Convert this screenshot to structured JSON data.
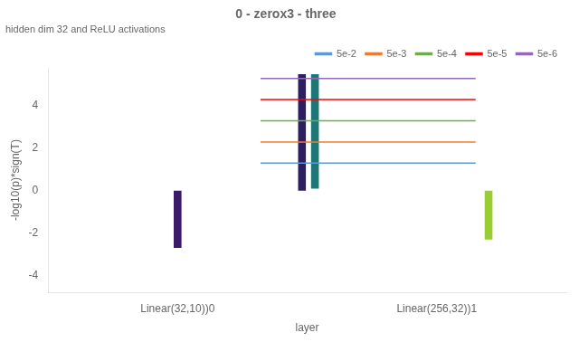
{
  "chart_data": {
    "type": "bar",
    "title": "0 - zerox3 - three",
    "subtitle": "hidden dim 32 and ReLU activations",
    "xlabel": "layer",
    "ylabel": "-log10(p)*sign(T)",
    "x": [
      0.0,
      0.48,
      0.53,
      1.2
    ],
    "values": [
      [
        -2.7,
        0.0
      ],
      [
        0.0,
        5.5
      ],
      [
        0.1,
        5.5
      ],
      [
        -2.3,
        0.0
      ]
    ],
    "colors": [
      "#3b1a6b",
      "#2d1f5e",
      "#1d7777",
      "#9acd32"
    ],
    "xlim": [
      -0.5,
      1.5
    ],
    "xticks": [
      {
        "value": 0,
        "label": "Linear(32,10))0"
      },
      {
        "value": 1,
        "label": "Linear(256,32))1"
      }
    ],
    "ylim": [
      -4.8,
      5.8
    ],
    "yticks": [
      -4,
      -2,
      0,
      2,
      4
    ],
    "grid": false,
    "legend": "upper right",
    "series": [
      {
        "name": "5e-2",
        "type": "line",
        "color": "#5b9bd5",
        "x": [
          0.32,
          1.15
        ],
        "values": [
          1.301,
          1.301
        ]
      },
      {
        "name": "5e-3",
        "type": "line",
        "color": "#ed7d31",
        "x": [
          0.32,
          1.15
        ],
        "values": [
          2.301,
          2.301
        ]
      },
      {
        "name": "5e-4",
        "type": "line",
        "color": "#70ad47",
        "x": [
          0.32,
          1.15
        ],
        "values": [
          3.301,
          3.301
        ]
      },
      {
        "name": "5e-5",
        "type": "line",
        "color": "#ff0000",
        "x": [
          0.32,
          1.15
        ],
        "values": [
          4.301,
          4.301
        ]
      },
      {
        "name": "5e-6",
        "type": "line",
        "color": "#9467bd",
        "x": [
          0.32,
          1.15
        ],
        "values": [
          5.301,
          5.301
        ]
      }
    ]
  }
}
